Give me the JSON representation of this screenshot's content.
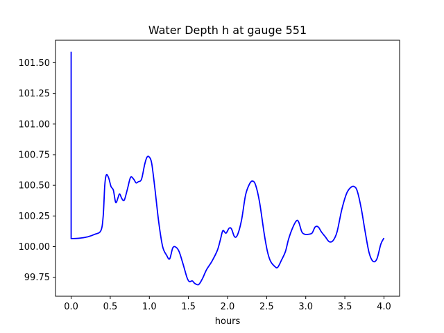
{
  "chart_data": {
    "type": "line",
    "title": "Water Depth h at gauge 551",
    "xlabel": "hours",
    "ylabel": "",
    "xlim": [
      -0.2,
      4.2
    ],
    "ylim": [
      99.595,
      101.684
    ],
    "xticks": [
      0.0,
      0.5,
      1.0,
      1.5,
      2.0,
      2.5,
      3.0,
      3.5,
      4.0
    ],
    "xtick_labels": [
      "0.0",
      "0.5",
      "1.0",
      "1.5",
      "2.0",
      "2.5",
      "3.0",
      "3.5",
      "4.0"
    ],
    "yticks": [
      99.75,
      100.0,
      100.25,
      100.5,
      100.75,
      101.0,
      101.25,
      101.5
    ],
    "ytick_labels": [
      "99.75",
      "100.00",
      "100.25",
      "100.50",
      "100.75",
      "101.00",
      "101.25",
      "101.50"
    ],
    "grid": false,
    "legend": "none",
    "series": [
      {
        "color": "#0000ff",
        "points": [
          [
            0.0,
            101.59
          ],
          [
            0.0,
            100.065
          ],
          [
            0.1,
            100.068
          ],
          [
            0.2,
            100.078
          ],
          [
            0.3,
            100.1
          ],
          [
            0.38,
            100.13
          ],
          [
            0.41,
            100.25
          ],
          [
            0.43,
            100.5
          ],
          [
            0.45,
            100.585
          ],
          [
            0.48,
            100.56
          ],
          [
            0.51,
            100.49
          ],
          [
            0.54,
            100.46
          ],
          [
            0.57,
            100.36
          ],
          [
            0.6,
            100.4
          ],
          [
            0.62,
            100.43
          ],
          [
            0.65,
            100.39
          ],
          [
            0.68,
            100.38
          ],
          [
            0.72,
            100.47
          ],
          [
            0.76,
            100.565
          ],
          [
            0.8,
            100.55
          ],
          [
            0.83,
            100.52
          ],
          [
            0.86,
            100.53
          ],
          [
            0.9,
            100.55
          ],
          [
            0.94,
            100.67
          ],
          [
            0.97,
            100.73
          ],
          [
            1.0,
            100.73
          ],
          [
            1.03,
            100.68
          ],
          [
            1.07,
            100.48
          ],
          [
            1.12,
            100.2
          ],
          [
            1.17,
            100.0
          ],
          [
            1.22,
            99.93
          ],
          [
            1.26,
            99.9
          ],
          [
            1.3,
            99.99
          ],
          [
            1.34,
            99.995
          ],
          [
            1.38,
            99.96
          ],
          [
            1.43,
            99.86
          ],
          [
            1.48,
            99.75
          ],
          [
            1.51,
            99.715
          ],
          [
            1.55,
            99.72
          ],
          [
            1.58,
            99.7
          ],
          [
            1.63,
            99.69
          ],
          [
            1.68,
            99.74
          ],
          [
            1.73,
            99.81
          ],
          [
            1.8,
            99.88
          ],
          [
            1.87,
            99.97
          ],
          [
            1.91,
            100.06
          ],
          [
            1.94,
            100.13
          ],
          [
            1.98,
            100.11
          ],
          [
            2.02,
            100.15
          ],
          [
            2.05,
            100.145
          ],
          [
            2.09,
            100.08
          ],
          [
            2.13,
            100.1
          ],
          [
            2.18,
            100.22
          ],
          [
            2.23,
            100.42
          ],
          [
            2.28,
            100.51
          ],
          [
            2.32,
            100.535
          ],
          [
            2.36,
            100.5
          ],
          [
            2.41,
            100.36
          ],
          [
            2.47,
            100.1
          ],
          [
            2.51,
            99.96
          ],
          [
            2.55,
            99.88
          ],
          [
            2.6,
            99.84
          ],
          [
            2.64,
            99.83
          ],
          [
            2.69,
            99.89
          ],
          [
            2.74,
            99.96
          ],
          [
            2.78,
            100.06
          ],
          [
            2.83,
            100.15
          ],
          [
            2.88,
            100.21
          ],
          [
            2.91,
            100.2
          ],
          [
            2.95,
            100.12
          ],
          [
            2.99,
            100.1
          ],
          [
            3.03,
            100.1
          ],
          [
            3.08,
            100.11
          ],
          [
            3.12,
            100.16
          ],
          [
            3.16,
            100.16
          ],
          [
            3.2,
            100.12
          ],
          [
            3.25,
            100.08
          ],
          [
            3.3,
            100.04
          ],
          [
            3.35,
            100.05
          ],
          [
            3.4,
            100.12
          ],
          [
            3.46,
            100.3
          ],
          [
            3.52,
            100.43
          ],
          [
            3.57,
            100.48
          ],
          [
            3.62,
            100.49
          ],
          [
            3.66,
            100.45
          ],
          [
            3.71,
            100.31
          ],
          [
            3.76,
            100.12
          ],
          [
            3.81,
            99.95
          ],
          [
            3.86,
            99.88
          ],
          [
            3.91,
            99.9
          ],
          [
            3.96,
            100.02
          ],
          [
            4.0,
            100.07
          ]
        ]
      }
    ]
  }
}
